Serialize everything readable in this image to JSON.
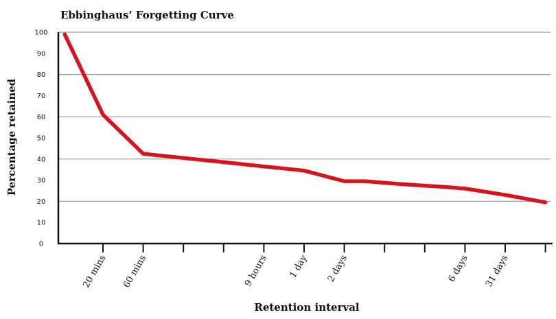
{
  "chart_data": {
    "type": "line",
    "title": "Ebbinghaus’ Forgetting Curve",
    "xlabel": "Retention interval",
    "ylabel": "Percentage retained",
    "ylim": [
      0,
      100
    ],
    "yticks": [
      "0",
      "10",
      "20",
      "30",
      "40",
      "50",
      "60",
      "70",
      "80",
      "90",
      "100"
    ],
    "grid": true,
    "x_tick_count": 12,
    "x_tick_labels": [
      {
        "index": 1,
        "label": "20 mins"
      },
      {
        "index": 2,
        "label": "60 mins"
      },
      {
        "index": 5,
        "label": "9 hours"
      },
      {
        "index": 6,
        "label": "1 day"
      },
      {
        "index": 7,
        "label": "2 days"
      },
      {
        "index": 10,
        "label": "6 days"
      },
      {
        "index": 11,
        "label": "31 days"
      }
    ],
    "x_domain": [
      0.05,
      12
    ],
    "series": [
      {
        "color": "#d7141e",
        "points": [
          {
            "x": 0.05,
            "y": 99
          },
          {
            "x": 1,
            "y": 61
          },
          {
            "x": 2,
            "y": 42.5
          },
          {
            "x": 3,
            "y": 40.5
          },
          {
            "x": 4,
            "y": 38.5
          },
          {
            "x": 5,
            "y": 36.5
          },
          {
            "x": 6,
            "y": 34.5
          },
          {
            "x": 7,
            "y": 29.5
          },
          {
            "x": 7.5,
            "y": 29.5
          },
          {
            "x": 8.5,
            "y": 28
          },
          {
            "x": 9.5,
            "y": 26.8
          },
          {
            "x": 10,
            "y": 26
          },
          {
            "x": 11,
            "y": 23
          },
          {
            "x": 12,
            "y": 19.5
          }
        ]
      }
    ]
  }
}
